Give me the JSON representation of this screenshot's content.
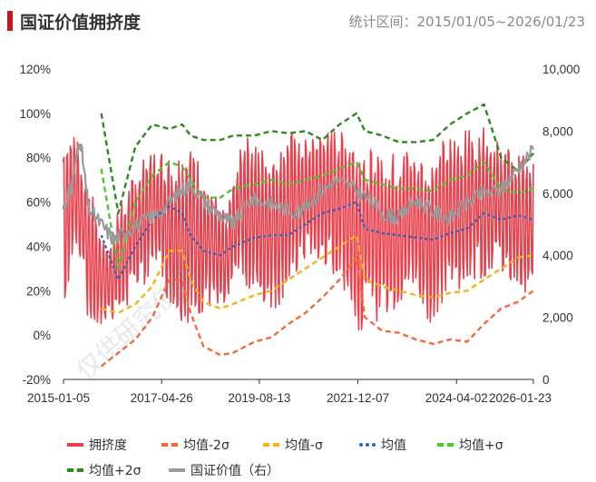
{
  "header": {
    "title": "国证价值拥挤度",
    "range": "统计区间：2015/01/05~2026/01/23"
  },
  "watermark": "仅供研究使用",
  "chart_data": {
    "type": "line",
    "title": "国证价值拥挤度",
    "x_ticks": [
      "2015-01-05",
      "2017-04-26",
      "2019-08-13",
      "2021-12-07",
      "2024-04-02",
      "2026-01-23"
    ],
    "x_range": [
      "2015-01-05",
      "2026-01-23"
    ],
    "y_left": {
      "ticks": [
        "-20%",
        "0%",
        "20%",
        "40%",
        "60%",
        "80%",
        "100%",
        "120%"
      ],
      "range": [
        -20,
        120
      ],
      "unit": "%"
    },
    "y_right": {
      "ticks": [
        "0",
        "2,000",
        "4,000",
        "6,000",
        "8,000",
        "10,000"
      ],
      "range": [
        0,
        10000
      ]
    },
    "grid": false,
    "legend_position": "bottom",
    "series": [
      {
        "name": "拥挤度",
        "color": "#e8414e",
        "style": "solid",
        "axis": "left",
        "band": [
          [
            2015.0,
            10,
            88
          ],
          [
            2015.3,
            40,
            95
          ],
          [
            2015.6,
            2,
            70
          ],
          [
            2016.0,
            5,
            40
          ],
          [
            2016.4,
            8,
            62
          ],
          [
            2016.8,
            20,
            78
          ],
          [
            2017.2,
            30,
            85
          ],
          [
            2017.6,
            8,
            80
          ],
          [
            2018.0,
            5,
            88
          ],
          [
            2018.4,
            12,
            70
          ],
          [
            2018.8,
            5,
            55
          ],
          [
            2019.2,
            25,
            92
          ],
          [
            2019.6,
            15,
            85
          ],
          [
            2020.0,
            10,
            85
          ],
          [
            2020.4,
            25,
            92
          ],
          [
            2020.8,
            35,
            88
          ],
          [
            2021.2,
            30,
            92
          ],
          [
            2021.6,
            20,
            95
          ],
          [
            2022.0,
            0,
            85
          ],
          [
            2022.4,
            5,
            88
          ],
          [
            2022.8,
            10,
            82
          ],
          [
            2023.2,
            20,
            85
          ],
          [
            2023.6,
            5,
            78
          ],
          [
            2024.0,
            15,
            90
          ],
          [
            2024.4,
            20,
            92
          ],
          [
            2024.8,
            25,
            95
          ],
          [
            2025.2,
            30,
            88
          ],
          [
            2025.6,
            20,
            82
          ],
          [
            2026.06,
            12,
            80
          ]
        ]
      },
      {
        "name": "均值-2σ",
        "color": "#f26a3d",
        "style": "dash",
        "axis": "left",
        "points": [
          [
            2015.9,
            -14
          ],
          [
            2016.3,
            -8
          ],
          [
            2016.7,
            -2
          ],
          [
            2017.1,
            8
          ],
          [
            2017.5,
            25
          ],
          [
            2017.8,
            25
          ],
          [
            2018.0,
            10
          ],
          [
            2018.3,
            -5
          ],
          [
            2018.7,
            -9
          ],
          [
            2019.0,
            -8
          ],
          [
            2019.5,
            -3
          ],
          [
            2019.9,
            -1
          ],
          [
            2020.3,
            5
          ],
          [
            2020.7,
            10
          ],
          [
            2021.1,
            17
          ],
          [
            2021.5,
            25
          ],
          [
            2021.9,
            35
          ],
          [
            2022.1,
            8
          ],
          [
            2022.5,
            2
          ],
          [
            2022.9,
            1
          ],
          [
            2023.3,
            -2
          ],
          [
            2023.7,
            -4
          ],
          [
            2024.1,
            -2
          ],
          [
            2024.5,
            -3
          ],
          [
            2024.9,
            5
          ],
          [
            2025.3,
            12
          ],
          [
            2025.7,
            15
          ],
          [
            2026.06,
            20
          ]
        ]
      },
      {
        "name": "均值-σ",
        "color": "#f5b31a",
        "style": "dash",
        "axis": "left",
        "points": [
          [
            2015.9,
            12
          ],
          [
            2016.3,
            10
          ],
          [
            2016.7,
            14
          ],
          [
            2017.1,
            22
          ],
          [
            2017.5,
            38
          ],
          [
            2017.8,
            38
          ],
          [
            2018.0,
            25
          ],
          [
            2018.3,
            15
          ],
          [
            2018.7,
            12
          ],
          [
            2019.0,
            14
          ],
          [
            2019.5,
            18
          ],
          [
            2019.9,
            20
          ],
          [
            2020.3,
            25
          ],
          [
            2020.7,
            30
          ],
          [
            2021.1,
            35
          ],
          [
            2021.5,
            40
          ],
          [
            2021.9,
            45
          ],
          [
            2022.1,
            25
          ],
          [
            2022.5,
            22
          ],
          [
            2022.9,
            20
          ],
          [
            2023.3,
            18
          ],
          [
            2023.7,
            17
          ],
          [
            2024.1,
            19
          ],
          [
            2024.5,
            20
          ],
          [
            2024.9,
            25
          ],
          [
            2025.3,
            30
          ],
          [
            2025.7,
            35
          ],
          [
            2026.06,
            36
          ]
        ]
      },
      {
        "name": "均值",
        "color": "#2e64b8",
        "style": "dot",
        "axis": "left",
        "points": [
          [
            2015.9,
            45
          ],
          [
            2016.3,
            25
          ],
          [
            2016.7,
            40
          ],
          [
            2017.1,
            52
          ],
          [
            2017.5,
            58
          ],
          [
            2017.8,
            55
          ],
          [
            2018.0,
            45
          ],
          [
            2018.3,
            38
          ],
          [
            2018.7,
            36
          ],
          [
            2019.0,
            40
          ],
          [
            2019.5,
            44
          ],
          [
            2019.9,
            45
          ],
          [
            2020.3,
            45
          ],
          [
            2020.7,
            50
          ],
          [
            2021.1,
            55
          ],
          [
            2021.5,
            57
          ],
          [
            2021.9,
            60
          ],
          [
            2022.1,
            48
          ],
          [
            2022.5,
            46
          ],
          [
            2022.9,
            45
          ],
          [
            2023.3,
            44
          ],
          [
            2023.7,
            43
          ],
          [
            2024.1,
            46
          ],
          [
            2024.5,
            48
          ],
          [
            2024.9,
            55
          ],
          [
            2025.3,
            52
          ],
          [
            2025.7,
            54
          ],
          [
            2026.06,
            52
          ]
        ]
      },
      {
        "name": "均值+σ",
        "color": "#4ec72e",
        "style": "dash",
        "axis": "left",
        "points": [
          [
            2015.9,
            75
          ],
          [
            2016.3,
            30
          ],
          [
            2016.7,
            60
          ],
          [
            2017.1,
            72
          ],
          [
            2017.5,
            78
          ],
          [
            2017.8,
            76
          ],
          [
            2018.0,
            70
          ],
          [
            2018.3,
            62
          ],
          [
            2018.7,
            62
          ],
          [
            2019.0,
            66
          ],
          [
            2019.5,
            68
          ],
          [
            2019.9,
            70
          ],
          [
            2020.3,
            68
          ],
          [
            2020.7,
            70
          ],
          [
            2021.1,
            72
          ],
          [
            2021.5,
            75
          ],
          [
            2021.9,
            78
          ],
          [
            2022.1,
            70
          ],
          [
            2022.5,
            68
          ],
          [
            2022.9,
            66
          ],
          [
            2023.3,
            66
          ],
          [
            2023.7,
            65
          ],
          [
            2024.1,
            70
          ],
          [
            2024.5,
            72
          ],
          [
            2024.9,
            78
          ],
          [
            2025.3,
            66
          ],
          [
            2025.7,
            64
          ],
          [
            2026.06,
            66
          ]
        ]
      },
      {
        "name": "均值+2σ",
        "color": "#2e8a1e",
        "style": "dash",
        "axis": "left",
        "points": [
          [
            2015.9,
            100
          ],
          [
            2016.3,
            55
          ],
          [
            2016.7,
            85
          ],
          [
            2017.1,
            95
          ],
          [
            2017.5,
            93
          ],
          [
            2017.8,
            95
          ],
          [
            2018.0,
            90
          ],
          [
            2018.3,
            88
          ],
          [
            2018.7,
            88
          ],
          [
            2019.0,
            90
          ],
          [
            2019.5,
            90
          ],
          [
            2019.9,
            92
          ],
          [
            2020.3,
            91
          ],
          [
            2020.7,
            92
          ],
          [
            2021.1,
            88
          ],
          [
            2021.5,
            95
          ],
          [
            2021.9,
            100
          ],
          [
            2022.1,
            92
          ],
          [
            2022.5,
            90
          ],
          [
            2022.9,
            87
          ],
          [
            2023.3,
            87
          ],
          [
            2023.7,
            88
          ],
          [
            2024.1,
            95
          ],
          [
            2024.5,
            100
          ],
          [
            2024.9,
            104
          ],
          [
            2025.3,
            80
          ],
          [
            2025.7,
            74
          ],
          [
            2026.06,
            82
          ]
        ]
      },
      {
        "name": "国证价值（右）",
        "color": "#9a9a9a",
        "style": "solid",
        "axis": "right",
        "points": [
          [
            2015.0,
            5500
          ],
          [
            2015.2,
            6200
          ],
          [
            2015.4,
            7800
          ],
          [
            2015.6,
            5500
          ],
          [
            2015.9,
            5000
          ],
          [
            2016.2,
            4500
          ],
          [
            2016.5,
            4800
          ],
          [
            2016.9,
            5100
          ],
          [
            2017.3,
            5400
          ],
          [
            2017.7,
            6000
          ],
          [
            2018.0,
            6300
          ],
          [
            2018.4,
            5600
          ],
          [
            2018.8,
            5200
          ],
          [
            2019.0,
            5000
          ],
          [
            2019.4,
            5800
          ],
          [
            2019.8,
            5700
          ],
          [
            2020.2,
            5500
          ],
          [
            2020.6,
            5400
          ],
          [
            2021.0,
            6000
          ],
          [
            2021.4,
            6400
          ],
          [
            2021.8,
            6200
          ],
          [
            2022.2,
            5800
          ],
          [
            2022.6,
            5300
          ],
          [
            2022.9,
            5200
          ],
          [
            2023.3,
            5800
          ],
          [
            2023.7,
            5400
          ],
          [
            2024.1,
            5200
          ],
          [
            2024.5,
            5700
          ],
          [
            2024.9,
            6000
          ],
          [
            2025.3,
            6100
          ],
          [
            2025.7,
            6800
          ],
          [
            2026.06,
            7400
          ]
        ]
      }
    ]
  }
}
